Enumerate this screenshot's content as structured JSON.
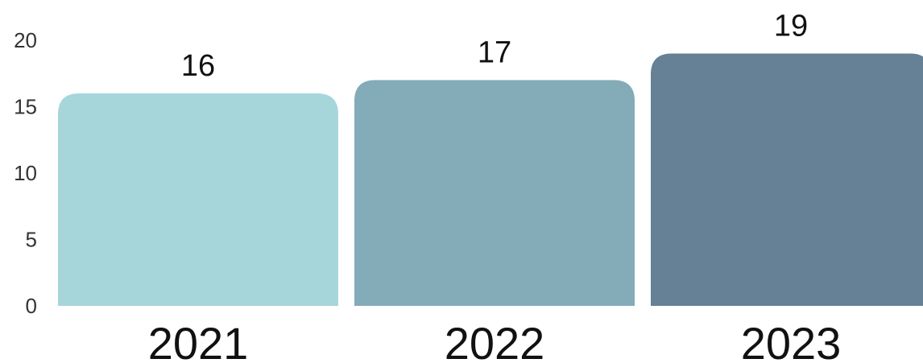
{
  "chart_data": {
    "type": "bar",
    "title": "",
    "xlabel": "",
    "ylabel": "",
    "categories": [
      "2021",
      "2022",
      "2023"
    ],
    "values": [
      16,
      17,
      19
    ],
    "data_labels": [
      "16",
      "17",
      "19"
    ],
    "bar_colors": [
      "#a7d6da",
      "#83abb8",
      "#668096"
    ],
    "ylim": [
      0,
      20
    ],
    "y_ticks": [
      0,
      5,
      10,
      15,
      20
    ],
    "y_tick_labels": [
      "0",
      "5",
      "10",
      "15",
      "20"
    ],
    "grid": false,
    "legend": "none"
  }
}
